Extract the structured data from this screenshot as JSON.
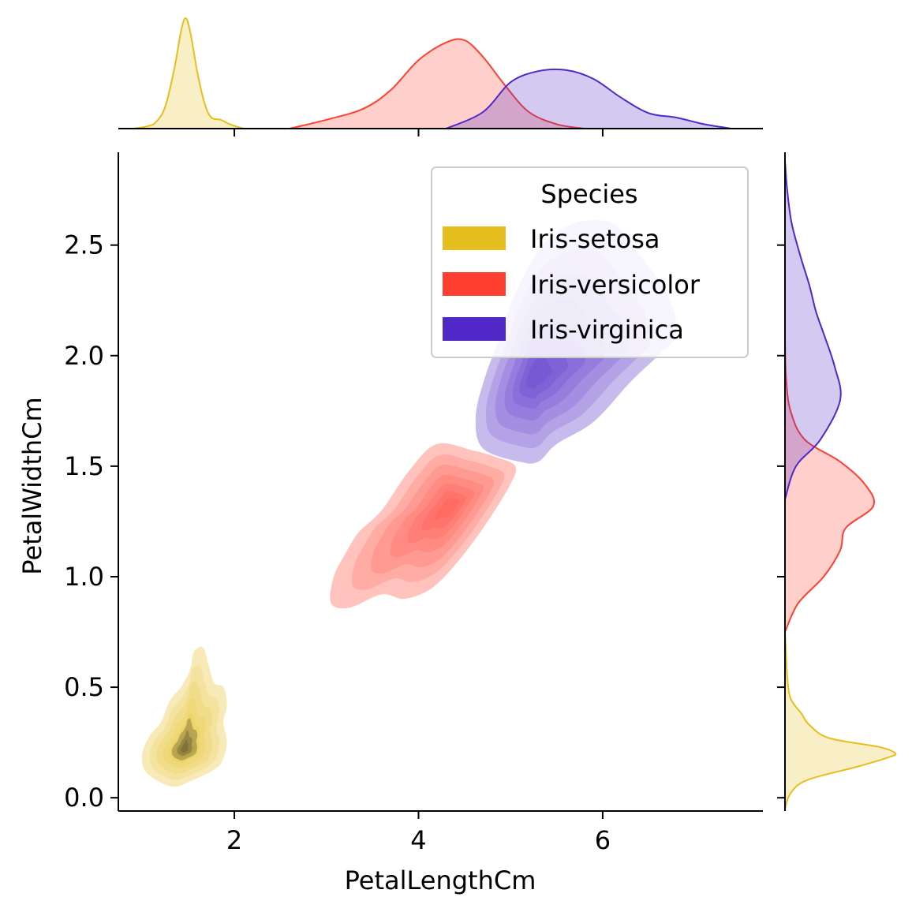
{
  "chart_data": {
    "type": "joint-kde",
    "xlabel": "PetalLengthCm",
    "ylabel": "PetalWidthCm",
    "xlim": [
      0.74,
      7.74
    ],
    "ylim": [
      -0.06,
      2.92
    ],
    "xticks": [
      2,
      4,
      6
    ],
    "yticks": [
      0.0,
      0.5,
      1.0,
      1.5,
      2.0,
      2.5
    ],
    "xtick_labels": [
      "2",
      "4",
      "6"
    ],
    "ytick_labels": [
      "0.0",
      "0.5",
      "1.0",
      "1.5",
      "2.0",
      "2.5"
    ],
    "legend": {
      "title": "Species",
      "placement": "top-right",
      "entries": [
        "Iris-setosa",
        "Iris-versicolor",
        "Iris-virginica"
      ]
    },
    "series": [
      {
        "name": "Iris-setosa",
        "color": "#E6BE1E",
        "contour_peak": {
          "x": 1.46,
          "y": 0.22
        },
        "contour_outline": [
          [
            1.35,
            0.05
          ],
          [
            1.55,
            0.08
          ],
          [
            1.75,
            0.12
          ],
          [
            1.86,
            0.16
          ],
          [
            1.92,
            0.25
          ],
          [
            1.88,
            0.34
          ],
          [
            1.92,
            0.42
          ],
          [
            1.88,
            0.5
          ],
          [
            1.78,
            0.52
          ],
          [
            1.72,
            0.6
          ],
          [
            1.66,
            0.68
          ],
          [
            1.56,
            0.66
          ],
          [
            1.52,
            0.58
          ],
          [
            1.42,
            0.5
          ],
          [
            1.3,
            0.44
          ],
          [
            1.2,
            0.34
          ],
          [
            1.08,
            0.28
          ],
          [
            1.0,
            0.2
          ],
          [
            1.02,
            0.13
          ],
          [
            1.15,
            0.08
          ]
        ],
        "x_marginal": [
          [
            0.9,
            0.0
          ],
          [
            1.05,
            0.02
          ],
          [
            1.15,
            0.06
          ],
          [
            1.25,
            0.2
          ],
          [
            1.35,
            0.55
          ],
          [
            1.42,
            0.88
          ],
          [
            1.47,
            1.0
          ],
          [
            1.52,
            0.88
          ],
          [
            1.6,
            0.5
          ],
          [
            1.68,
            0.22
          ],
          [
            1.75,
            0.1
          ],
          [
            1.85,
            0.08
          ],
          [
            1.95,
            0.04
          ],
          [
            2.1,
            0.0
          ]
        ],
        "y_marginal": [
          [
            -0.05,
            0.0
          ],
          [
            0.02,
            0.05
          ],
          [
            0.08,
            0.2
          ],
          [
            0.14,
            0.65
          ],
          [
            0.18,
            0.92
          ],
          [
            0.2,
            1.0
          ],
          [
            0.23,
            0.85
          ],
          [
            0.27,
            0.4
          ],
          [
            0.33,
            0.22
          ],
          [
            0.38,
            0.15
          ],
          [
            0.45,
            0.05
          ],
          [
            0.55,
            0.02
          ],
          [
            0.65,
            0.01
          ],
          [
            0.75,
            0.0
          ]
        ]
      },
      {
        "name": "Iris-versicolor",
        "color": "#FF4030",
        "contour_peak": {
          "x": 4.35,
          "y": 1.32
        },
        "contour_outline": [
          [
            3.05,
            0.88
          ],
          [
            3.25,
            0.86
          ],
          [
            3.6,
            0.92
          ],
          [
            3.85,
            0.9
          ],
          [
            4.15,
            0.95
          ],
          [
            4.45,
            1.08
          ],
          [
            4.75,
            1.25
          ],
          [
            5.0,
            1.42
          ],
          [
            5.05,
            1.5
          ],
          [
            4.85,
            1.54
          ],
          [
            4.6,
            1.57
          ],
          [
            4.2,
            1.6
          ],
          [
            3.9,
            1.48
          ],
          [
            3.6,
            1.3
          ],
          [
            3.35,
            1.2
          ],
          [
            3.2,
            1.1
          ],
          [
            3.08,
            1.0
          ]
        ],
        "x_marginal": [
          [
            2.6,
            0.0
          ],
          [
            3.0,
            0.08
          ],
          [
            3.4,
            0.18
          ],
          [
            3.7,
            0.35
          ],
          [
            4.0,
            0.62
          ],
          [
            4.3,
            0.78
          ],
          [
            4.5,
            0.8
          ],
          [
            4.7,
            0.65
          ],
          [
            4.95,
            0.38
          ],
          [
            5.2,
            0.15
          ],
          [
            5.5,
            0.04
          ],
          [
            5.8,
            0.0
          ]
        ],
        "y_marginal": [
          [
            0.75,
            0.0
          ],
          [
            0.88,
            0.12
          ],
          [
            1.0,
            0.35
          ],
          [
            1.12,
            0.5
          ],
          [
            1.22,
            0.55
          ],
          [
            1.32,
            0.8
          ],
          [
            1.42,
            0.72
          ],
          [
            1.52,
            0.5
          ],
          [
            1.62,
            0.18
          ],
          [
            1.75,
            0.05
          ],
          [
            1.9,
            0.01
          ],
          [
            2.07,
            0.0
          ]
        ]
      },
      {
        "name": "Iris-virginica",
        "color": "#5028C8",
        "contour_peak": {
          "x": 5.25,
          "y": 1.9
        },
        "contour_outline": [
          [
            4.7,
            1.58
          ],
          [
            5.1,
            1.52
          ],
          [
            5.3,
            1.52
          ],
          [
            5.5,
            1.6
          ],
          [
            5.9,
            1.7
          ],
          [
            6.3,
            1.88
          ],
          [
            6.6,
            2.0
          ],
          [
            6.8,
            2.1
          ],
          [
            6.7,
            2.28
          ],
          [
            6.35,
            2.48
          ],
          [
            6.1,
            2.6
          ],
          [
            5.7,
            2.6
          ],
          [
            5.35,
            2.5
          ],
          [
            5.05,
            2.28
          ],
          [
            4.9,
            2.1
          ],
          [
            4.72,
            1.9
          ],
          [
            4.62,
            1.72
          ]
        ],
        "x_marginal": [
          [
            4.3,
            0.0
          ],
          [
            4.7,
            0.15
          ],
          [
            5.0,
            0.42
          ],
          [
            5.3,
            0.52
          ],
          [
            5.6,
            0.53
          ],
          [
            5.9,
            0.45
          ],
          [
            6.2,
            0.28
          ],
          [
            6.5,
            0.14
          ],
          [
            6.8,
            0.1
          ],
          [
            7.1,
            0.04
          ],
          [
            7.4,
            0.0
          ]
        ],
        "y_marginal": [
          [
            1.35,
            0.0
          ],
          [
            1.5,
            0.1
          ],
          [
            1.62,
            0.32
          ],
          [
            1.8,
            0.5
          ],
          [
            1.95,
            0.45
          ],
          [
            2.1,
            0.35
          ],
          [
            2.2,
            0.28
          ],
          [
            2.32,
            0.22
          ],
          [
            2.45,
            0.14
          ],
          [
            2.6,
            0.06
          ],
          [
            2.75,
            0.02
          ],
          [
            2.88,
            0.0
          ]
        ]
      }
    ]
  }
}
